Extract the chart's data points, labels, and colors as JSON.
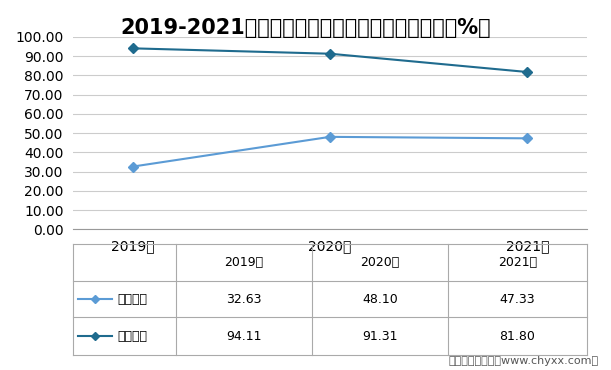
{
  "title": "2019-2021年两家企业太阳能电池背板业务占比（%）",
  "years": [
    "2019年",
    "2020年",
    "2021年"
  ],
  "series": [
    {
      "name": "乐凯胶片",
      "values": [
        32.63,
        48.1,
        47.33
      ],
      "color": "#5B9BD5",
      "marker": "D",
      "linewidth": 1.5
    },
    {
      "name": "明冠新材",
      "values": [
        94.11,
        91.31,
        81.8
      ],
      "color": "#1F6B8E",
      "marker": "D",
      "linewidth": 1.5
    }
  ],
  "ylim": [
    0,
    100
  ],
  "yticks": [
    0.0,
    10.0,
    20.0,
    30.0,
    40.0,
    50.0,
    60.0,
    70.0,
    80.0,
    90.0,
    100.0
  ],
  "table_rows": [
    [
      "乐凯胶片",
      "32.63",
      "48.10",
      "47.33"
    ],
    [
      "明冠新材",
      "94.11",
      "91.31",
      "81.80"
    ]
  ],
  "watermark": "制图：智研咨询（www.chyxx.com）",
  "bg_color": "#FFFFFF",
  "plot_bg_color": "#FFFFFF",
  "grid_color": "#CCCCCC",
  "border_color": "#AAAAAA",
  "title_fontsize": 15,
  "axis_fontsize": 10,
  "table_fontsize": 9,
  "watermark_fontsize": 8
}
